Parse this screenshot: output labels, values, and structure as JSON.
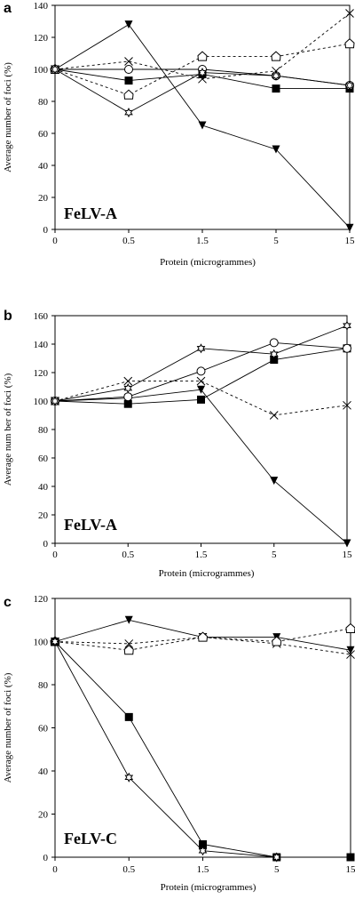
{
  "chart_data": [
    {
      "type": "line",
      "panel": "a",
      "annotation": "FeLV-A",
      "xlabel": "Protein (microgrammes)",
      "ylabel": "Average number of foci (%)",
      "categories": [
        "0",
        "0.5",
        "1.5",
        "5",
        "15"
      ],
      "ylim": [
        0,
        140
      ],
      "yticks": [
        0,
        20,
        40,
        60,
        80,
        100,
        120,
        140
      ],
      "series": [
        {
          "marker": "triangle-down",
          "dashed": false,
          "values": [
            100,
            128,
            65,
            50,
            1
          ]
        },
        {
          "marker": "square",
          "dashed": false,
          "values": [
            100,
            93,
            97,
            88,
            88
          ]
        },
        {
          "marker": "x",
          "dashed": true,
          "values": [
            100,
            105,
            94,
            99,
            135
          ]
        },
        {
          "marker": "pentagon-open",
          "dashed": true,
          "values": [
            100,
            84,
            108,
            108,
            116
          ]
        },
        {
          "marker": "circle-open",
          "dashed": false,
          "values": [
            100,
            100,
            100,
            96,
            90
          ]
        },
        {
          "marker": "star-open",
          "dashed": false,
          "values": [
            100,
            73,
            98,
            96,
            90
          ]
        }
      ]
    },
    {
      "type": "line",
      "panel": "b",
      "annotation": "FeLV-A",
      "xlabel": "Protein (microgrammes)",
      "ylabel": "Average num ber of foci (%)",
      "categories": [
        "0",
        "0.5",
        "1.5",
        "5",
        "15"
      ],
      "ylim": [
        0,
        160
      ],
      "yticks": [
        0,
        20,
        40,
        60,
        80,
        100,
        120,
        140,
        160
      ],
      "series": [
        {
          "marker": "triangle-down",
          "dashed": false,
          "values": [
            100,
            102,
            108,
            44,
            0
          ]
        },
        {
          "marker": "square",
          "dashed": false,
          "values": [
            100,
            98,
            101,
            129,
            137
          ]
        },
        {
          "marker": "x",
          "dashed": true,
          "values": [
            100,
            114,
            114,
            90,
            97
          ]
        },
        {
          "marker": "circle-open",
          "dashed": false,
          "values": [
            100,
            103,
            121,
            141,
            137
          ]
        },
        {
          "marker": "star-open",
          "dashed": false,
          "values": [
            100,
            109,
            137,
            133,
            153
          ]
        }
      ]
    },
    {
      "type": "line",
      "panel": "c",
      "annotation": "FeLV-C",
      "xlabel": "Protein (microgrammes)",
      "ylabel": "Average number of foci (%)",
      "categories": [
        "0",
        "0.5",
        "1.5",
        "5",
        "15"
      ],
      "ylim": [
        0,
        120
      ],
      "yticks": [
        0,
        20,
        40,
        60,
        80,
        100,
        120
      ],
      "series": [
        {
          "marker": "triangle-down",
          "dashed": false,
          "values": [
            100,
            110,
            102,
            102,
            96
          ]
        },
        {
          "marker": "x",
          "dashed": true,
          "values": [
            100,
            99,
            102,
            99,
            94
          ]
        },
        {
          "marker": "pentagon-open",
          "dashed": true,
          "values": [
            100,
            96,
            102,
            100,
            106
          ]
        },
        {
          "marker": "square",
          "dashed": false,
          "values": [
            100,
            65,
            6,
            0,
            0
          ]
        },
        {
          "marker": "star-open",
          "dashed": false,
          "values": [
            100,
            37,
            3,
            0,
            null
          ]
        }
      ]
    }
  ]
}
